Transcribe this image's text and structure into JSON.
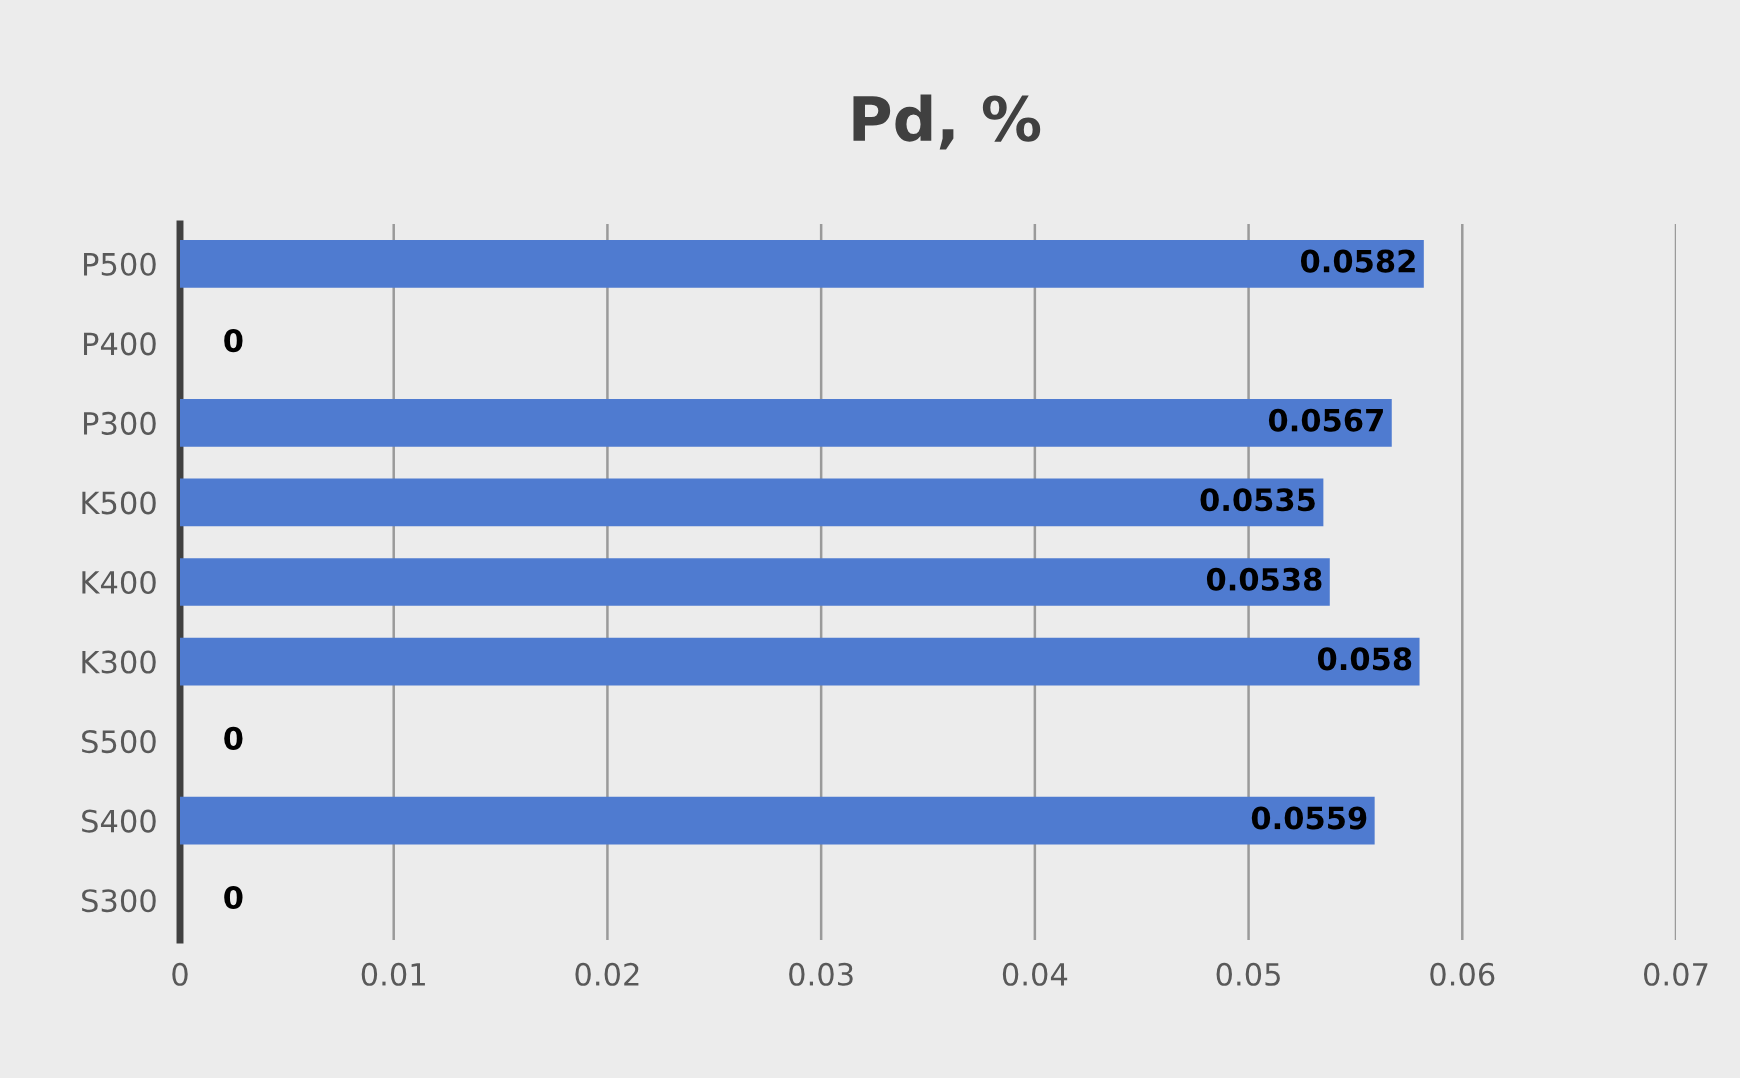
{
  "chart_data": {
    "type": "bar",
    "title": "Pd, %",
    "orientation": "horizontal",
    "categories": [
      "P500",
      "P400",
      "P300",
      "K500",
      "K400",
      "K300",
      "S500",
      "S400",
      "S300"
    ],
    "values": [
      0.0582,
      0,
      0.0567,
      0.0535,
      0.0538,
      0.058,
      0,
      0.0559,
      0
    ],
    "color": "#4f7bd0",
    "xlim": [
      0,
      0.07
    ],
    "xticks": [
      0,
      0.01,
      0.02,
      0.03,
      0.04,
      0.05,
      0.06,
      0.07
    ],
    "grid": "x",
    "data_labels": true
  }
}
